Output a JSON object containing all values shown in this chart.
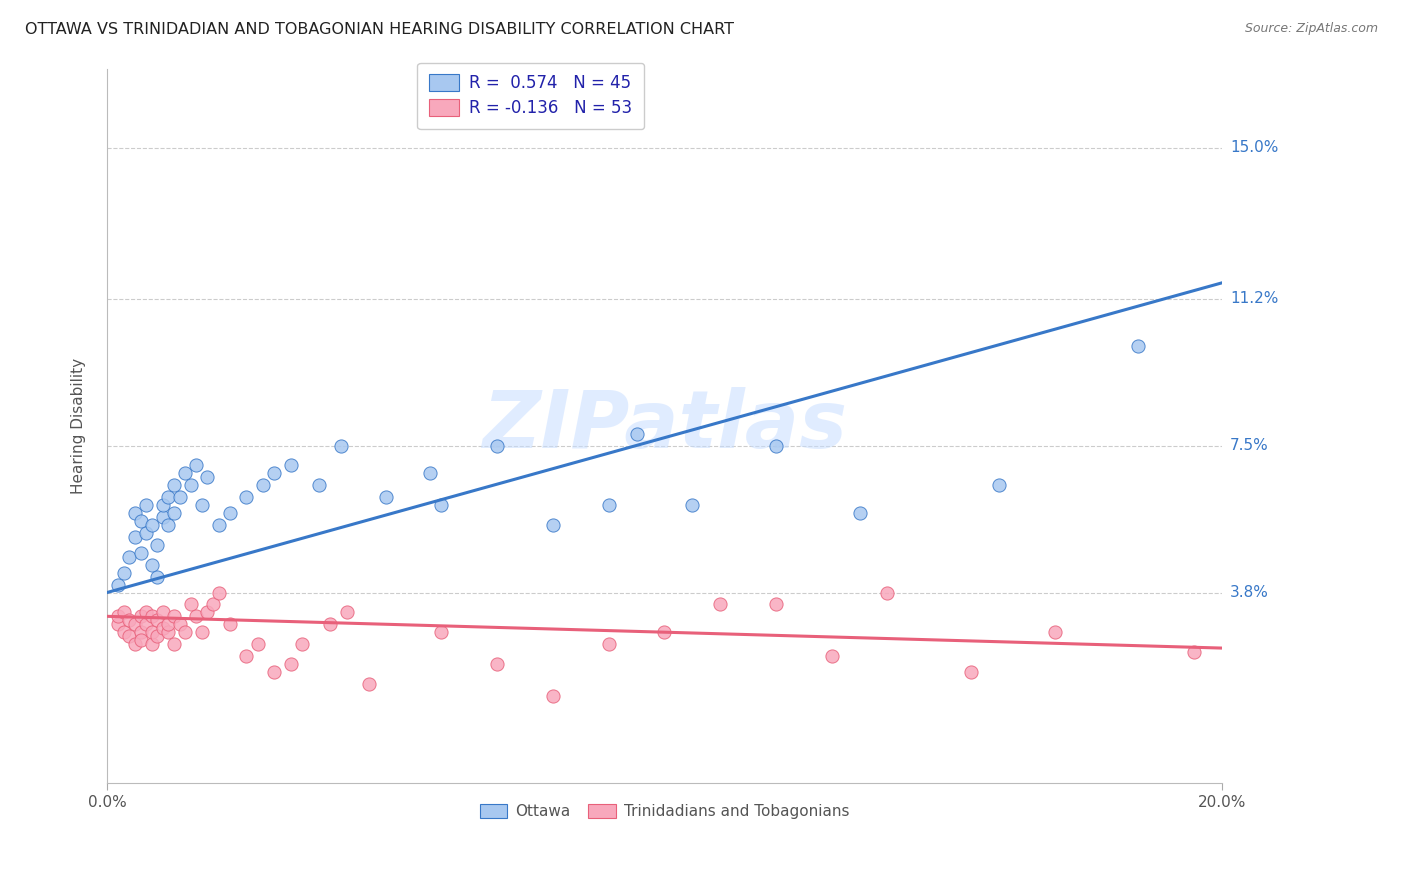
{
  "title": "OTTAWA VS TRINIDADIAN AND TOBAGONIAN HEARING DISABILITY CORRELATION CHART",
  "source": "Source: ZipAtlas.com",
  "ylabel": "Hearing Disability",
  "ytick_labels": [
    "3.8%",
    "7.5%",
    "11.2%",
    "15.0%"
  ],
  "ytick_values": [
    0.038,
    0.075,
    0.112,
    0.15
  ],
  "xlim": [
    0.0,
    0.2
  ],
  "ylim": [
    -0.01,
    0.17
  ],
  "legend_r1": "R =  0.574   N = 45",
  "legend_r2": "R = -0.136   N = 53",
  "ottawa_color": "#A8C8F0",
  "trinidadian_color": "#F8A8BC",
  "line_ottawa_color": "#3878C8",
  "line_trinidadian_color": "#E8607A",
  "watermark": "ZIPatlas",
  "ottawa_scatter_x": [
    0.002,
    0.003,
    0.004,
    0.005,
    0.005,
    0.006,
    0.006,
    0.007,
    0.007,
    0.008,
    0.008,
    0.009,
    0.009,
    0.01,
    0.01,
    0.011,
    0.011,
    0.012,
    0.012,
    0.013,
    0.014,
    0.015,
    0.016,
    0.017,
    0.018,
    0.02,
    0.022,
    0.025,
    0.028,
    0.03,
    0.033,
    0.038,
    0.042,
    0.05,
    0.058,
    0.06,
    0.07,
    0.08,
    0.09,
    0.095,
    0.105,
    0.12,
    0.135,
    0.16,
    0.185
  ],
  "ottawa_scatter_y": [
    0.04,
    0.043,
    0.047,
    0.052,
    0.058,
    0.048,
    0.056,
    0.053,
    0.06,
    0.045,
    0.055,
    0.042,
    0.05,
    0.057,
    0.06,
    0.055,
    0.062,
    0.058,
    0.065,
    0.062,
    0.068,
    0.065,
    0.07,
    0.06,
    0.067,
    0.055,
    0.058,
    0.062,
    0.065,
    0.068,
    0.07,
    0.065,
    0.075,
    0.062,
    0.068,
    0.06,
    0.075,
    0.055,
    0.06,
    0.078,
    0.06,
    0.075,
    0.058,
    0.065,
    0.1
  ],
  "trinidadian_scatter_x": [
    0.002,
    0.002,
    0.003,
    0.003,
    0.004,
    0.004,
    0.005,
    0.005,
    0.006,
    0.006,
    0.006,
    0.007,
    0.007,
    0.008,
    0.008,
    0.008,
    0.009,
    0.009,
    0.01,
    0.01,
    0.011,
    0.011,
    0.012,
    0.012,
    0.013,
    0.014,
    0.015,
    0.016,
    0.017,
    0.018,
    0.019,
    0.02,
    0.022,
    0.025,
    0.027,
    0.03,
    0.033,
    0.035,
    0.04,
    0.043,
    0.047,
    0.06,
    0.07,
    0.08,
    0.09,
    0.1,
    0.11,
    0.12,
    0.13,
    0.14,
    0.155,
    0.17,
    0.195
  ],
  "trinidadian_scatter_y": [
    0.03,
    0.032,
    0.028,
    0.033,
    0.027,
    0.031,
    0.025,
    0.03,
    0.028,
    0.032,
    0.026,
    0.03,
    0.033,
    0.025,
    0.028,
    0.032,
    0.027,
    0.031,
    0.029,
    0.033,
    0.028,
    0.03,
    0.032,
    0.025,
    0.03,
    0.028,
    0.035,
    0.032,
    0.028,
    0.033,
    0.035,
    0.038,
    0.03,
    0.022,
    0.025,
    0.018,
    0.02,
    0.025,
    0.03,
    0.033,
    0.015,
    0.028,
    0.02,
    0.012,
    0.025,
    0.028,
    0.035,
    0.035,
    0.022,
    0.038,
    0.018,
    0.028,
    0.023
  ],
  "background_color": "#FFFFFF",
  "grid_color": "#CCCCCC",
  "line_ottawa_intercept": 0.038,
  "line_ottawa_slope": 0.39,
  "line_trinidadian_intercept": 0.032,
  "line_trinidadian_slope": -0.04
}
